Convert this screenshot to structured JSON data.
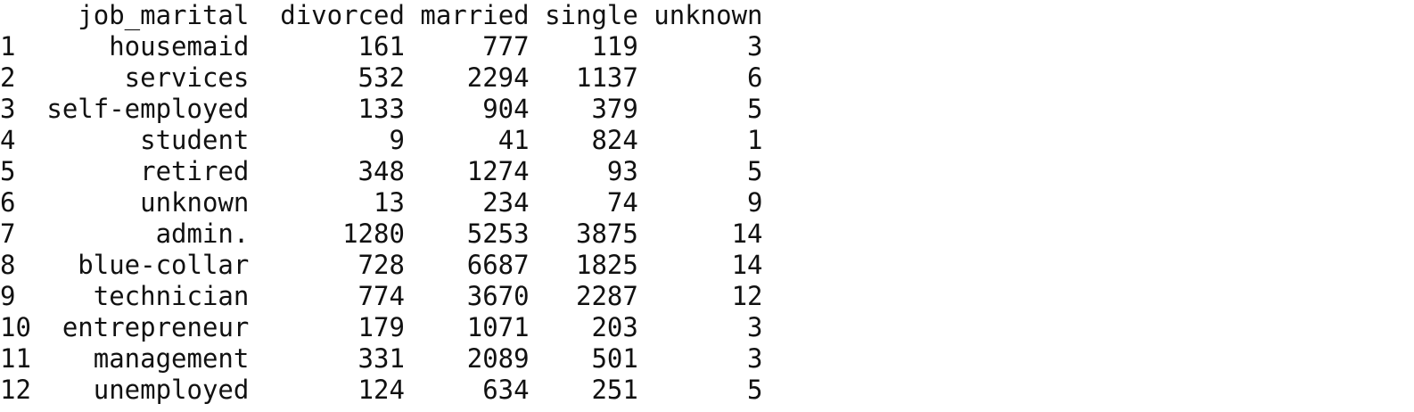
{
  "table": {
    "headers": {
      "index": "",
      "job_marital": "job_marital",
      "divorced": "divorced",
      "married": "married",
      "single": "single",
      "unknown": "unknown"
    },
    "rows": [
      {
        "index": "1",
        "job_marital": "housemaid",
        "divorced": "161",
        "married": "777",
        "single": "119",
        "unknown": "3"
      },
      {
        "index": "2",
        "job_marital": "services",
        "divorced": "532",
        "married": "2294",
        "single": "1137",
        "unknown": "6"
      },
      {
        "index": "3",
        "job_marital": "self-employed",
        "divorced": "133",
        "married": "904",
        "single": "379",
        "unknown": "5"
      },
      {
        "index": "4",
        "job_marital": "student",
        "divorced": "9",
        "married": "41",
        "single": "824",
        "unknown": "1"
      },
      {
        "index": "5",
        "job_marital": "retired",
        "divorced": "348",
        "married": "1274",
        "single": "93",
        "unknown": "5"
      },
      {
        "index": "6",
        "job_marital": "unknown",
        "divorced": "13",
        "married": "234",
        "single": "74",
        "unknown": "9"
      },
      {
        "index": "7",
        "job_marital": "admin.",
        "divorced": "1280",
        "married": "5253",
        "single": "3875",
        "unknown": "14"
      },
      {
        "index": "8",
        "job_marital": "blue-collar",
        "divorced": "728",
        "married": "6687",
        "single": "1825",
        "unknown": "14"
      },
      {
        "index": "9",
        "job_marital": "technician",
        "divorced": "774",
        "married": "3670",
        "single": "2287",
        "unknown": "12"
      },
      {
        "index": "10",
        "job_marital": "entrepreneur",
        "divorced": "179",
        "married": "1071",
        "single": "203",
        "unknown": "3"
      },
      {
        "index": "11",
        "job_marital": "management",
        "divorced": "331",
        "married": "2089",
        "single": "501",
        "unknown": "3"
      },
      {
        "index": "12",
        "job_marital": "unemployed",
        "divorced": "124",
        "married": "634",
        "single": "251",
        "unknown": "5"
      }
    ]
  }
}
